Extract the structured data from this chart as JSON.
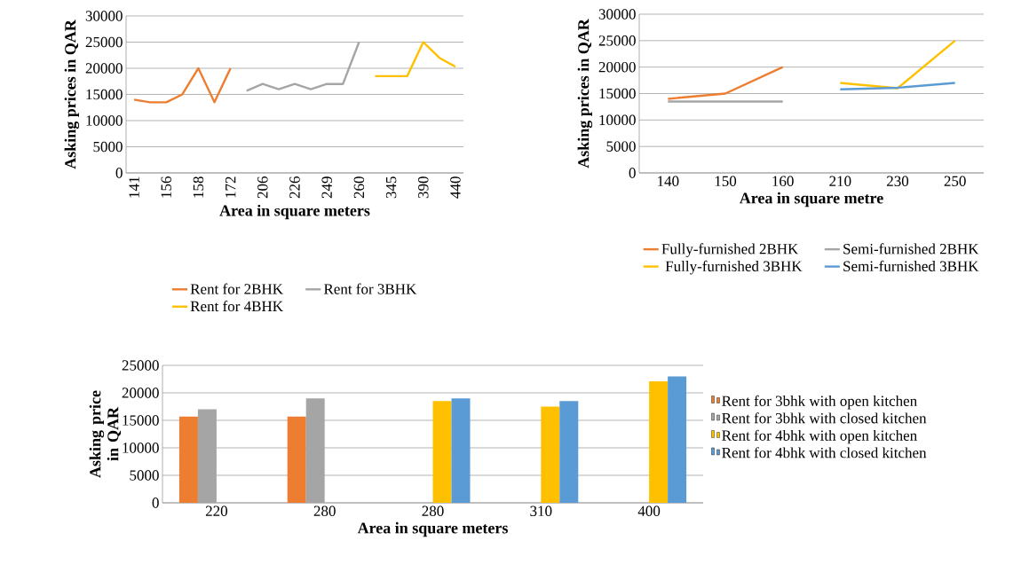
{
  "chart_data": [
    {
      "type": "line",
      "xlabel": "Area in square meters",
      "ylabel": "Asking prices in QAR",
      "categories": [
        "141",
        null,
        "156",
        null,
        "158",
        null,
        "172",
        null,
        "206",
        null,
        "226",
        null,
        "249",
        null,
        "260",
        null,
        "345",
        null,
        "390",
        null,
        "440"
      ],
      "series": [
        {
          "name": "Rent for 2BHK",
          "color": "#ed7d31",
          "values": [
            14000,
            13500,
            13500,
            15000,
            20000,
            13500,
            20000,
            null,
            null,
            null,
            null,
            null,
            null,
            null,
            null,
            null,
            null,
            null,
            null,
            null,
            null
          ]
        },
        {
          "name": "Rent for 3BHK",
          "color": "#a5a5a5",
          "values": [
            null,
            null,
            null,
            null,
            null,
            null,
            null,
            15700,
            17000,
            16000,
            17000,
            16000,
            17000,
            17000,
            25000,
            null,
            null,
            null,
            null,
            null,
            null
          ]
        },
        {
          "name": "Rent for 4BHK",
          "color": "#ffc000",
          "values": [
            null,
            null,
            null,
            null,
            null,
            null,
            null,
            null,
            null,
            null,
            null,
            null,
            null,
            null,
            null,
            18500,
            18500,
            18500,
            25000,
            22000,
            20300
          ]
        }
      ],
      "ylim": [
        0,
        30000
      ],
      "yticks": [
        0,
        5000,
        10000,
        15000,
        20000,
        25000,
        30000
      ],
      "grid": "y",
      "legend": "bottom"
    },
    {
      "type": "line",
      "xlabel": "Area in square metre",
      "ylabel": "Asking prices in QAR",
      "categories": [
        "140",
        "150",
        "160",
        "210",
        "230",
        "250"
      ],
      "series": [
        {
          "name": "Fully-furnished 2BHK",
          "color": "#ed7d31",
          "values": [
            14000,
            15000,
            20000,
            null,
            null,
            null
          ]
        },
        {
          "name": "Semi-furnished 2BHK",
          "color": "#a5a5a5",
          "values": [
            13500,
            13500,
            13500,
            null,
            null,
            null
          ]
        },
        {
          "name": " Fully-furnished 3BHK",
          "color": "#ffc000",
          "values": [
            null,
            null,
            null,
            17000,
            16000,
            25000
          ]
        },
        {
          "name": "Semi-furnished 3BHK",
          "color": "#5b9bd5",
          "values": [
            null,
            null,
            null,
            15800,
            16100,
            17000
          ]
        }
      ],
      "ylim": [
        0,
        30000
      ],
      "yticks": [
        0,
        5000,
        10000,
        15000,
        20000,
        25000,
        30000
      ],
      "grid": "y",
      "legend": "bottom"
    },
    {
      "type": "bar",
      "xlabel": "Area in square meters",
      "ylabel": "Asking price in QAR",
      "categories": [
        "220",
        "280",
        "280",
        "310",
        "400"
      ],
      "series": [
        {
          "name": "Rent for 3bhk with open kitchen",
          "color": "#ed7d31",
          "values": [
            15700,
            15700,
            null,
            null,
            null
          ]
        },
        {
          "name": "Rent for 3bhk with closed kitchen",
          "color": "#a5a5a5",
          "values": [
            17000,
            19000,
            null,
            null,
            null
          ]
        },
        {
          "name": "Rent for 4bhk with open kitchen",
          "color": "#ffc000",
          "values": [
            null,
            null,
            18500,
            17500,
            22100
          ]
        },
        {
          "name": "Rent for 4bhk with closed kitchen",
          "color": "#5b9bd5",
          "values": [
            null,
            null,
            19000,
            18500,
            23000
          ]
        }
      ],
      "ylim": [
        0,
        25000
      ],
      "yticks": [
        0,
        5000,
        10000,
        15000,
        20000,
        25000
      ],
      "grid": "y",
      "legend": "right"
    }
  ]
}
